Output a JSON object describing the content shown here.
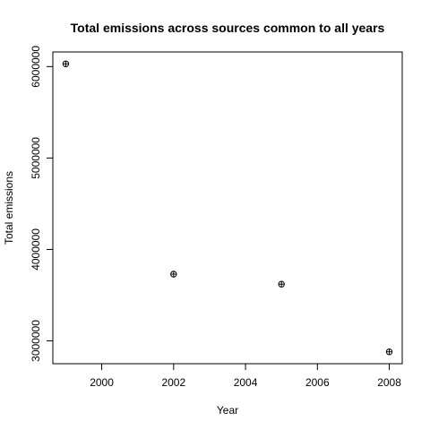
{
  "chart_data": {
    "type": "scatter",
    "title": "Total emissions across sources common to all years",
    "xlabel": "Year",
    "ylabel": "Total emissions",
    "x": [
      1999,
      2002,
      2005,
      2008
    ],
    "y": [
      6030000,
      3730000,
      3620000,
      2880000
    ],
    "xlim": [
      1998.64,
      2008.36
    ],
    "ylim": [
      2750000,
      6160000
    ],
    "xticks": [
      2000,
      2002,
      2004,
      2006,
      2008
    ],
    "xtick_labels": [
      "2000",
      "2002",
      "2004",
      "2006",
      "2008"
    ],
    "yticks": [
      3000000,
      4000000,
      5000000,
      6000000
    ],
    "ytick_labels": [
      "3000000",
      "4000000",
      "5000000",
      "6000000"
    ],
    "marker": "circle-plus",
    "grid": false,
    "color": "#000000"
  }
}
